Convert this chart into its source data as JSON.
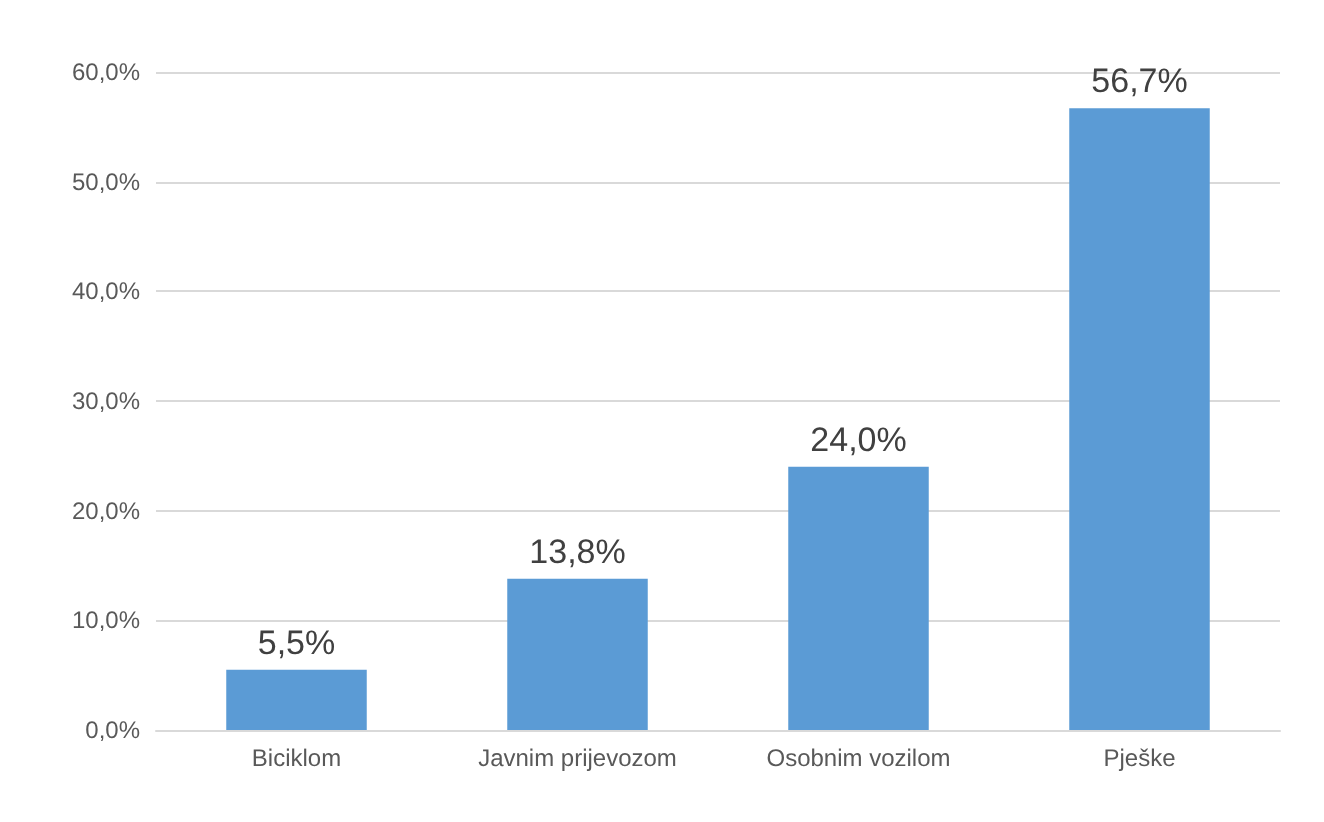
{
  "chart_data": {
    "type": "bar",
    "categories": [
      "Biciklom",
      "Javnim prijevozom",
      "Osobnim vozilom",
      "Pješke"
    ],
    "values": [
      5.5,
      13.8,
      24.0,
      56.7
    ],
    "value_labels": [
      "5,5%",
      "13,8%",
      "24,0%",
      "56,7%"
    ],
    "color": "#5b9bd5",
    "ylim": [
      0,
      60
    ],
    "yticks": [
      {
        "value": 0,
        "label": "0,0%"
      },
      {
        "value": 10,
        "label": "10,0%"
      },
      {
        "value": 20,
        "label": "20,0%"
      },
      {
        "value": 30,
        "label": "30,0%"
      },
      {
        "value": 40,
        "label": "40,0%"
      },
      {
        "value": 50,
        "label": "50,0%"
      },
      {
        "value": 60,
        "label": "60,0%"
      }
    ],
    "grid": true
  }
}
